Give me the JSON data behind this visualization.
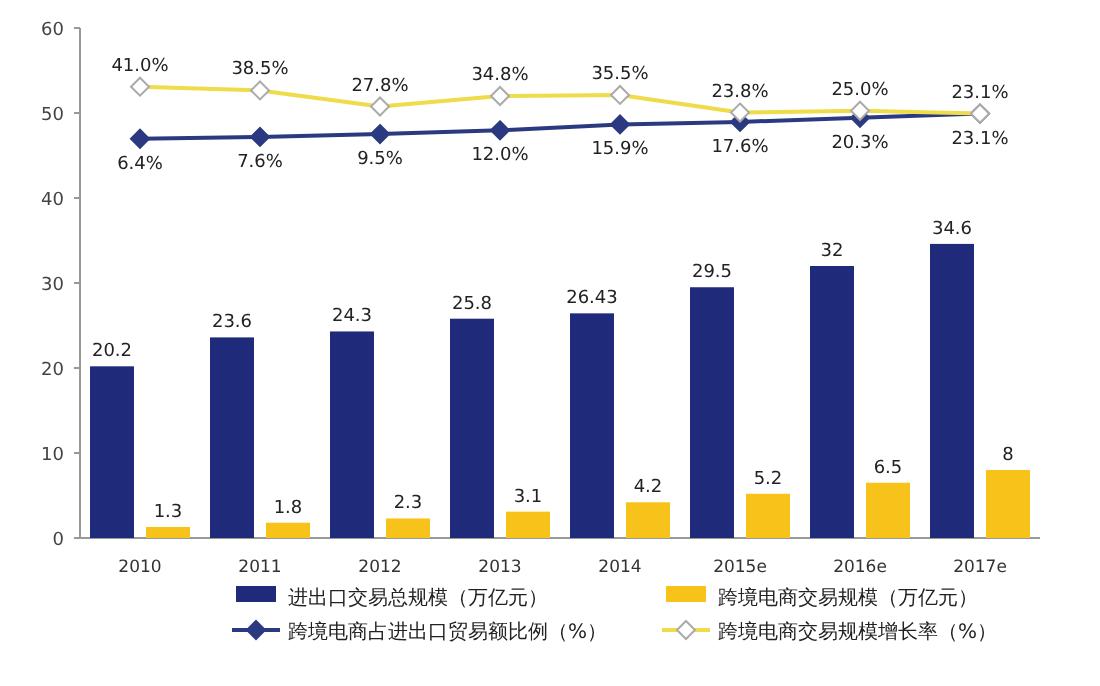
{
  "chart_data": {
    "type": "bar",
    "categories": [
      "2010",
      "2011",
      "2012",
      "2013",
      "2014",
      "2015e",
      "2016e",
      "2017e"
    ],
    "series": [
      {
        "name": "进出口交易总规模（万亿元）",
        "color": "#1f2a7a",
        "values": [
          20.2,
          23.6,
          24.3,
          25.8,
          26.43,
          29.5,
          32,
          34.6
        ],
        "value_labels": [
          "20.2",
          "23.6",
          "24.3",
          "25.8",
          "26.43",
          "29.5",
          "32",
          "34.6"
        ]
      },
      {
        "name": "跨境电商交易规模（万亿元）",
        "color": "#f7c31a",
        "values": [
          1.3,
          1.8,
          2.3,
          3.1,
          4.2,
          5.2,
          6.5,
          8
        ],
        "value_labels": [
          "1.3",
          "1.8",
          "2.3",
          "3.1",
          "4.2",
          "5.2",
          "6.5",
          "8"
        ]
      },
      {
        "name": "跨境电商占进出口贸易额比例（%）",
        "type": "line",
        "axis": "y2",
        "color": "#2b3a80",
        "marker": "diamond",
        "values": [
          6.4,
          7.6,
          9.5,
          12.0,
          15.9,
          17.6,
          20.3,
          23.1
        ],
        "value_labels": [
          "6.4%",
          "7.6%",
          "9.5%",
          "12.0%",
          "15.9%",
          "17.6%",
          "20.3%",
          "23.1%"
        ]
      },
      {
        "name": "跨境电商交易规模增长率（%）",
        "type": "line",
        "axis": "y2",
        "color": "#eedc4a",
        "marker": "diamond",
        "values": [
          41.0,
          38.5,
          27.8,
          34.8,
          35.5,
          23.8,
          25.0,
          23.1
        ],
        "value_labels": [
          "41.0%",
          "38.5%",
          "27.8%",
          "34.8%",
          "35.5%",
          "23.8%",
          "25.0%",
          "23.1%"
        ]
      }
    ],
    "ylim": [
      0,
      60
    ],
    "yticks": [
      0,
      10,
      20,
      30,
      40,
      50,
      60
    ],
    "y2lim": [
      -259,
      80
    ],
    "tick_labels": "xy",
    "grid": false,
    "legend": "bottom"
  }
}
